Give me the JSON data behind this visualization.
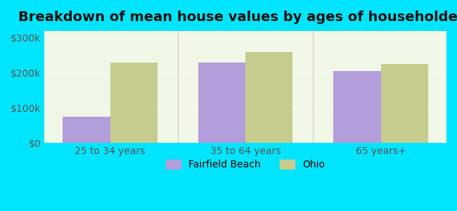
{
  "title": "Breakdown of mean house values by ages of householders",
  "categories": [
    "25 to 34 years",
    "35 to 64 years",
    "65 years+"
  ],
  "fairfield_beach": [
    75000,
    230000,
    205000
  ],
  "ohio": [
    230000,
    260000,
    225000
  ],
  "bar_color_fb": "#b39ddb",
  "bar_color_oh": "#c5cc8e",
  "ylim": [
    0,
    320000
  ],
  "yticks": [
    0,
    100000,
    200000,
    300000
  ],
  "ytick_labels": [
    "$0",
    "$100k",
    "$200k",
    "$300k"
  ],
  "legend_fb": "Fairfield Beach",
  "legend_oh": "Ohio",
  "bg_outer": "#00e5ff",
  "bg_inner": "#f0f7e6",
  "bar_width": 0.35,
  "title_fontsize": 14,
  "axis_fontsize": 10,
  "legend_fontsize": 10
}
